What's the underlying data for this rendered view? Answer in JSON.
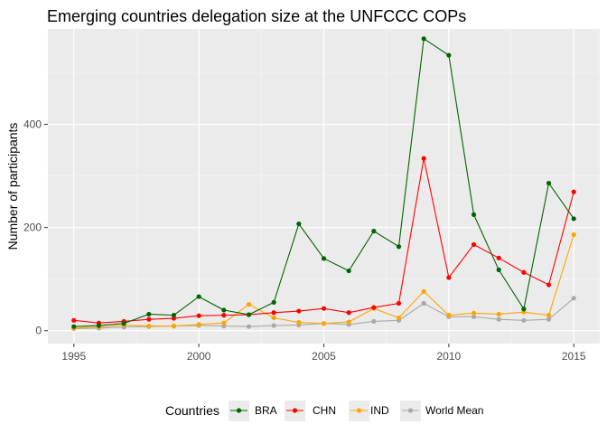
{
  "chart_data": {
    "type": "line",
    "title": "Emerging countries delegation size at the UNFCCC COPs",
    "xlabel": "",
    "ylabel": "Number of participants",
    "x": [
      1995,
      1996,
      1997,
      1998,
      1999,
      2000,
      2001,
      2002,
      2003,
      2004,
      2005,
      2006,
      2007,
      2008,
      2009,
      2010,
      2011,
      2012,
      2013,
      2014,
      2015
    ],
    "xlim": [
      1993.96,
      2016.04
    ],
    "ylim": [
      -25,
      585
    ],
    "xticks": [
      1995,
      2000,
      2005,
      2010,
      2015
    ],
    "yticks": [
      0,
      200,
      400
    ],
    "grid": true,
    "legend_position": "bottom",
    "legend_title": "Countries",
    "series": [
      {
        "name": "BRA",
        "color": "#006400",
        "values": [
          8,
          10,
          14,
          32,
          30,
          66,
          40,
          31,
          55,
          207,
          140,
          116,
          193,
          163,
          566,
          534,
          225,
          118,
          42,
          286,
          217
        ]
      },
      {
        "name": "CHN",
        "color": "#ff0000",
        "values": [
          20,
          15,
          18,
          22,
          24,
          29,
          30,
          31,
          35,
          38,
          43,
          35,
          45,
          53,
          334,
          103,
          167,
          141,
          113,
          89,
          269
        ]
      },
      {
        "name": "IND",
        "color": "#ffa500",
        "values": [
          5,
          7,
          11,
          9,
          9,
          12,
          15,
          51,
          25,
          16,
          14,
          17,
          43,
          25,
          76,
          30,
          34,
          32,
          36,
          30,
          186
        ]
      },
      {
        "name": "World Mean",
        "color": "#a9a9a9",
        "values": [
          4,
          5,
          7,
          8,
          9,
          10,
          9,
          8,
          10,
          11,
          14,
          12,
          18,
          20,
          53,
          27,
          27,
          22,
          20,
          22,
          63
        ]
      }
    ]
  }
}
